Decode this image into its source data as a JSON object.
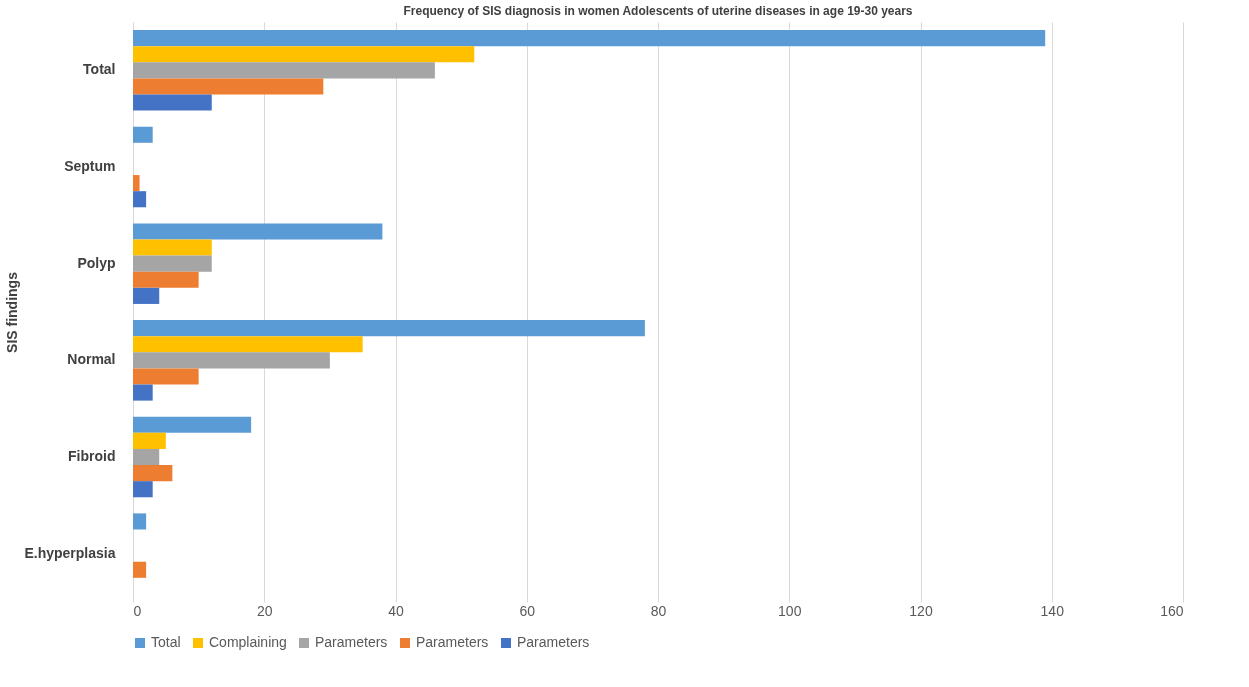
{
  "chart_data": {
    "type": "bar",
    "orientation": "horizontal",
    "title": "Frequency of SIS diagnosis in women Adolescents of uterine diseases in age 19-30 years",
    "ylabel": "SIS findings",
    "categories": [
      "Total",
      "Septum",
      "Polyp",
      "Normal",
      "Fibroid",
      "E.hyperplasia"
    ],
    "series": [
      {
        "name": "Total",
        "color": "#5b9bd5",
        "values": [
          139,
          3,
          38,
          78,
          18,
          2
        ]
      },
      {
        "name": "Complaining",
        "color": "#ffc000",
        "values": [
          52,
          0,
          12,
          35,
          5,
          0
        ]
      },
      {
        "name": "Parameters",
        "color": "#a5a5a5",
        "values": [
          46,
          0,
          12,
          30,
          4,
          0
        ]
      },
      {
        "name": "Parameters",
        "color": "#ed7d31",
        "values": [
          29,
          1,
          10,
          10,
          6,
          2
        ]
      },
      {
        "name": "Parameters",
        "color": "#4472c4",
        "values": [
          12,
          2,
          4,
          3,
          3,
          0
        ]
      }
    ],
    "xlim": [
      0,
      160
    ],
    "xticks": [
      0,
      20,
      40,
      60,
      80,
      100,
      120,
      140,
      160
    ],
    "grid": "x",
    "legend": "bottom"
  }
}
